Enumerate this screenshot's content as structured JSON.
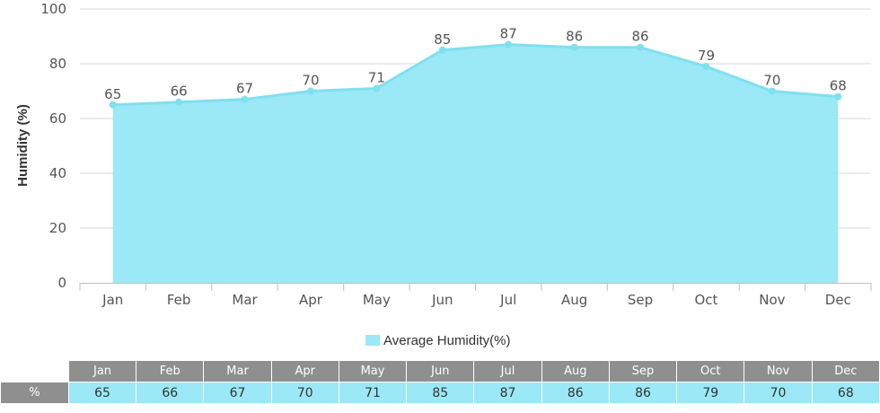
{
  "chart_data": {
    "type": "area",
    "categories": [
      "Jan",
      "Feb",
      "Mar",
      "Apr",
      "May",
      "Jun",
      "Jul",
      "Aug",
      "Sep",
      "Oct",
      "Nov",
      "Dec"
    ],
    "series": [
      {
        "name": "Average Humidity(%)",
        "values": [
          65,
          66,
          67,
          70,
          71,
          85,
          87,
          86,
          86,
          79,
          70,
          68
        ]
      }
    ],
    "title": "",
    "xlabel": "",
    "ylabel": "Humidity (%)",
    "ylim": [
      0,
      100
    ],
    "yticks": [
      0,
      20,
      40,
      60,
      80,
      100
    ],
    "grid": true,
    "legend": "bottom-center",
    "data_labels": true,
    "colors": {
      "fill": "#9be8f6",
      "line": "#7fe0f0",
      "grid": "#d8d8d8",
      "axis": "#c0c0c0"
    }
  },
  "table": {
    "row_label": "%",
    "header_bg": "#8f8f8f",
    "cell_bg": "#9be8f6"
  }
}
